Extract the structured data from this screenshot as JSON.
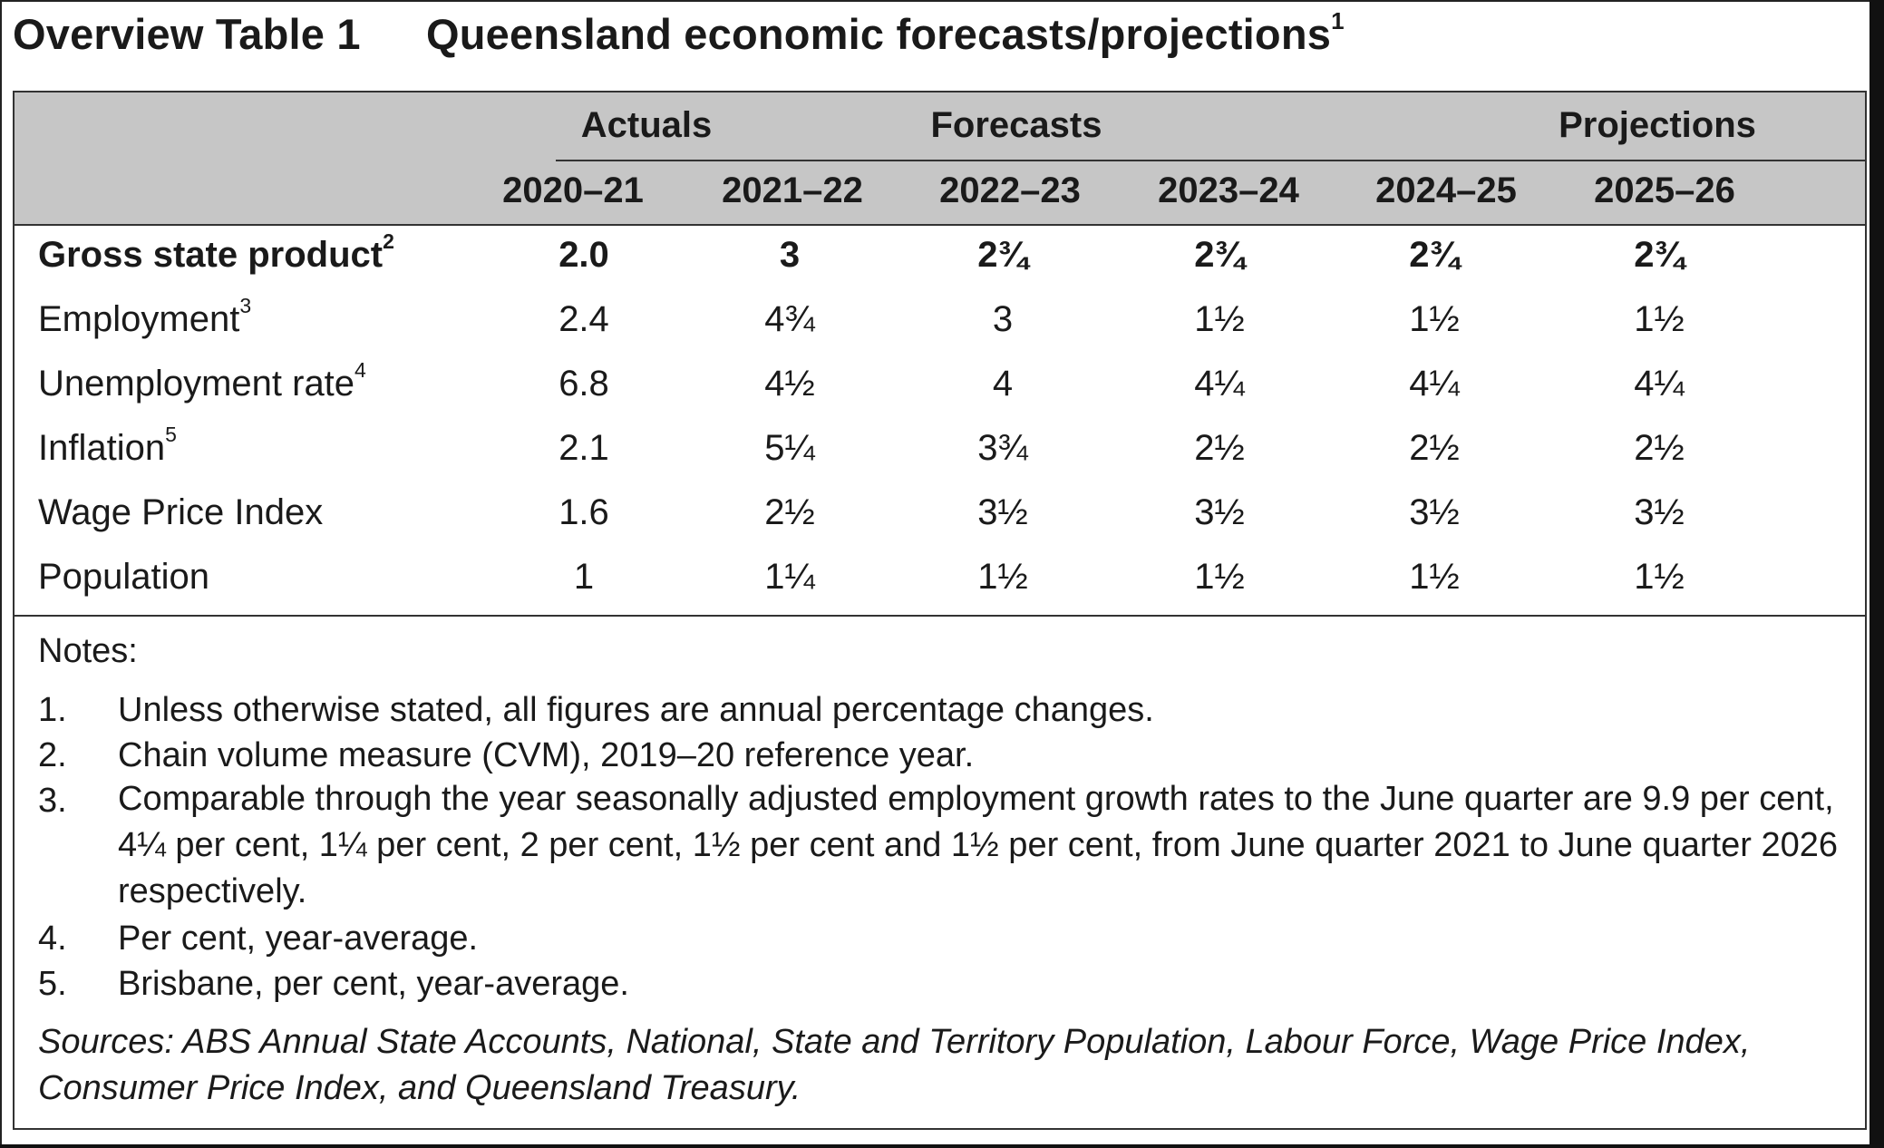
{
  "title": {
    "label": "Overview Table 1",
    "text": "Queensland economic forecasts/projections",
    "footnote": "1"
  },
  "table": {
    "groups": [
      {
        "label": "Actuals"
      },
      {
        "label": "Forecasts"
      },
      {
        "label": "Projections"
      }
    ],
    "years": [
      "2020–21",
      "2021–22",
      "2022–23",
      "2023–24",
      "2024–25",
      "2025–26"
    ],
    "rows": [
      {
        "label": "Gross state product",
        "footnote": "2",
        "values": [
          "2.0",
          "3",
          "2¾",
          "2¾",
          "2¾",
          "2¾"
        ]
      },
      {
        "label": "Employment",
        "footnote": "3",
        "values": [
          "2.4",
          "4¾",
          "3",
          "1½",
          "1½",
          "1½"
        ]
      },
      {
        "label": "Unemployment rate",
        "footnote": "4",
        "values": [
          "6.8",
          "4½",
          "4",
          "4¼",
          "4¼",
          "4¼"
        ]
      },
      {
        "label": "Inflation",
        "footnote": "5",
        "values": [
          "2.1",
          "5¼",
          "3¾",
          "2½",
          "2½",
          "2½"
        ]
      },
      {
        "label": "Wage Price Index",
        "footnote": "",
        "values": [
          "1.6",
          "2½",
          "3½",
          "3½",
          "3½",
          "3½"
        ]
      },
      {
        "label": "Population",
        "footnote": "",
        "values": [
          "1",
          "1¼",
          "1½",
          "1½",
          "1½",
          "1½"
        ]
      }
    ]
  },
  "notes": {
    "title": "Notes:",
    "items": [
      {
        "num": "1.",
        "text": "Unless otherwise stated, all figures are annual percentage changes."
      },
      {
        "num": "2.",
        "text": "Chain volume measure (CVM), 2019–20 reference year."
      },
      {
        "num": "3.",
        "text": "Comparable through the year seasonally adjusted employment growth rates to the June quarter are 9.9 per cent, 4¼ per cent, 1¼ per cent, 2 per cent, 1½ per cent and 1½ per cent, from June quarter 2021 to June quarter 2026 respectively."
      },
      {
        "num": "4.",
        "text": "Per cent, year-average."
      },
      {
        "num": "5.",
        "text": "Brisbane, per cent, year-average."
      }
    ],
    "sources": "Sources: ABS Annual State Accounts, National, State and Territory Population, Labour Force, Wage Price Index, Consumer Price Index, and Queensland Treasury."
  }
}
